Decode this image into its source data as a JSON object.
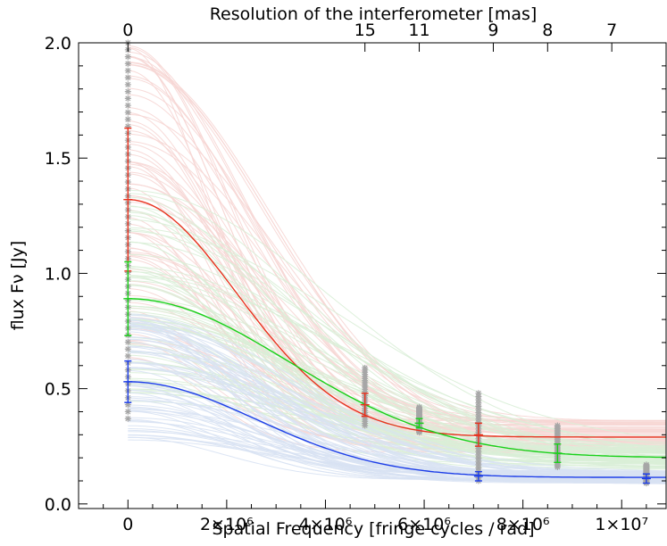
{
  "chart_data": {
    "type": "scatter",
    "title": "",
    "xlabel": "Spatial Frequency [fringe cycles / rad]",
    "ylabel": "flux Fν [Jy]",
    "top_xlabel": "Resolution of the interferometer [mas]",
    "xlim": [
      -1000000.0,
      10900000.0
    ],
    "ylim": [
      -0.02,
      2.0
    ],
    "grid": false,
    "x_ticks": [
      {
        "value": 0,
        "label": "0"
      },
      {
        "value": 2000000,
        "label": "2×10⁶"
      },
      {
        "value": 4000000,
        "label": "4×10⁶"
      },
      {
        "value": 6000000,
        "label": "6×10⁶"
      },
      {
        "value": 8000000,
        "label": "8×10⁶"
      },
      {
        "value": 10000000,
        "label": "1×10⁷"
      }
    ],
    "y_ticks": [
      {
        "value": 0.0,
        "label": "0.0"
      },
      {
        "value": 0.5,
        "label": "0.5"
      },
      {
        "value": 1.0,
        "label": "1.0"
      },
      {
        "value": 1.5,
        "label": "1.5"
      },
      {
        "value": 2.0,
        "label": "2.0"
      }
    ],
    "top_ticks": [
      {
        "value": 0,
        "label": "0"
      },
      {
        "value": 4800000,
        "label": "15"
      },
      {
        "value": 5900000,
        "label": "11"
      },
      {
        "value": 7400000,
        "label": "9"
      },
      {
        "value": 8500000,
        "label": "8"
      },
      {
        "value": 9800000,
        "label": "7"
      }
    ],
    "series": [
      {
        "color": "#e8321e",
        "shade": "#f6d6d4",
        "model": {
          "amplitude": 1.03,
          "sigma": 2200000,
          "offset": 0.29
        },
        "points": [
          {
            "x": 0,
            "y": 1.32,
            "err": 0.31
          },
          {
            "x": 4800000,
            "y": 0.43,
            "err": 0.05
          },
          {
            "x": 7100000,
            "y": 0.3,
            "err": 0.05
          }
        ]
      },
      {
        "color": "#18d018",
        "shade": "#d9eed7",
        "model": {
          "amplitude": 0.69,
          "sigma": 3250000,
          "offset": 0.2
        },
        "points": [
          {
            "x": 0,
            "y": 0.89,
            "err": 0.16
          },
          {
            "x": 5900000,
            "y": 0.35,
            "err": 0.02
          },
          {
            "x": 8700000,
            "y": 0.22,
            "err": 0.04
          }
        ]
      },
      {
        "color": "#1d3ee8",
        "shade": "#d8e2f3",
        "model": {
          "amplitude": 0.415,
          "sigma": 2600000,
          "offset": 0.115
        },
        "points": [
          {
            "x": 0,
            "y": 0.53,
            "err": 0.09
          },
          {
            "x": 7100000,
            "y": 0.12,
            "err": 0.02
          },
          {
            "x": 10500000,
            "y": 0.11,
            "err": 0.02
          }
        ]
      }
    ],
    "samples": [
      {
        "x": 0,
        "ymin": 0.37,
        "ymax": 2.0
      },
      {
        "x": 4800000,
        "ymin": 0.34,
        "ymax": 0.59
      },
      {
        "x": 5900000,
        "ymin": 0.31,
        "ymax": 0.42
      },
      {
        "x": 7100000,
        "ymin": 0.1,
        "ymax": 0.48
      },
      {
        "x": 8700000,
        "ymin": 0.16,
        "ymax": 0.34
      },
      {
        "x": 10500000,
        "ymin": 0.09,
        "ymax": 0.17
      }
    ],
    "sample_color": "#a6a6a6"
  }
}
